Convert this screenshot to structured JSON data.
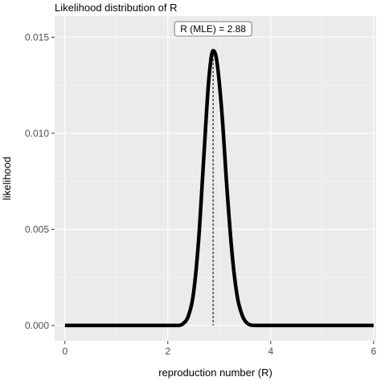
{
  "chart_data": {
    "type": "line",
    "title": "Likelihood distribution of R",
    "xlabel": "reproduction number (R)",
    "ylabel": "likelihood",
    "xlim": [
      -0.2,
      6.05
    ],
    "ylim": [
      -0.0008,
      0.0161
    ],
    "x_ticks": [
      0,
      2,
      4,
      6
    ],
    "x_tick_labels": [
      "0",
      "2",
      "4",
      "6"
    ],
    "y_ticks": [
      0.0,
      0.005,
      0.01,
      0.015
    ],
    "y_tick_labels": [
      "0.000",
      "0.005",
      "0.010",
      "0.015"
    ],
    "grid": true,
    "legend": "none",
    "series": [
      {
        "x": [
          0,
          2.2,
          2.3,
          2.4,
          2.5,
          2.6,
          2.7,
          2.8,
          2.88,
          2.95,
          3.05,
          3.15,
          3.25,
          3.35,
          3.45,
          3.55,
          3.7,
          6
        ],
        "values": [
          0,
          0,
          0.0001,
          0.0005,
          0.0017,
          0.0045,
          0.0088,
          0.0129,
          0.0143,
          0.0138,
          0.0111,
          0.0071,
          0.0037,
          0.0015,
          0.0005,
          0.0001,
          0,
          0
        ]
      }
    ],
    "annotation": {
      "label": "R (MLE) = 2.88",
      "x": 2.88,
      "y": 0.0143,
      "line_style": "dashed"
    }
  },
  "colors": {
    "panel": "#ebebeb",
    "grid_major": "#ffffff",
    "line": "#000000"
  }
}
